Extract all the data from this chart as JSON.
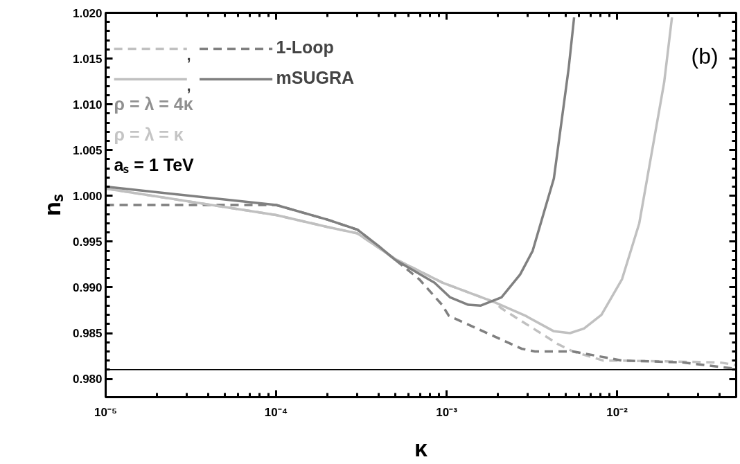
{
  "chart_data": {
    "type": "line",
    "xlabel": "κ",
    "ylabel": "nₛ",
    "log": "x",
    "xlim": [
      1e-05,
      0.05
    ],
    "ylim": [
      0.978,
      1.02
    ],
    "xticks": [
      {
        "value": 1e-05,
        "label": "10⁻⁵"
      },
      {
        "value": 0.0001,
        "label": "10⁻⁴"
      },
      {
        "value": 0.001,
        "label": "10⁻³"
      },
      {
        "value": 0.01,
        "label": "10⁻²"
      }
    ],
    "yticks": [
      {
        "value": 0.98,
        "label": "0.980"
      },
      {
        "value": 0.985,
        "label": "0.985"
      },
      {
        "value": 0.99,
        "label": "0.990"
      },
      {
        "value": 0.995,
        "label": "0.995"
      },
      {
        "value": 1.0,
        "label": "1.000"
      },
      {
        "value": 1.005,
        "label": "1.005"
      },
      {
        "value": 1.01,
        "label": "1.010"
      },
      {
        "value": 1.015,
        "label": "1.015"
      },
      {
        "value": 1.02,
        "label": "1.020"
      }
    ],
    "grid": false,
    "legend": "top left",
    "marker": "none",
    "series": [
      {
        "color": "#c0c0c0",
        "line_style": "dashed",
        "x": [
          1e-05,
          0.0001,
          0.0002,
          0.0003,
          0.0005,
          0.00095,
          0.0019,
          0.0021,
          0.0045,
          0.0055,
          0.0083,
          0.01,
          0.04,
          0.05
        ],
        "values": [
          1.0008,
          0.9979,
          0.9966,
          0.9959,
          0.9931,
          0.9905,
          0.9884,
          0.9877,
          0.9838,
          0.983,
          0.982,
          0.982,
          0.9818,
          0.9815
        ]
      },
      {
        "name": "1-Loop",
        "color": "#808080",
        "line_style": "dashed",
        "x": [
          1e-05,
          0.0001,
          0.0002,
          0.0003,
          0.0005,
          0.00069,
          0.00094,
          0.00103,
          0.00275,
          0.0033,
          0.0055,
          0.0107,
          0.024,
          0.05
        ],
        "values": [
          0.999,
          0.999,
          0.9974,
          0.9963,
          0.993,
          0.9909,
          0.9881,
          0.9869,
          0.9833,
          0.983,
          0.983,
          0.982,
          0.9818,
          0.9811
        ]
      },
      {
        "color": "#c0c0c0",
        "line_style": "solid",
        "x": [
          1e-05,
          0.0001,
          0.0002,
          0.0003,
          0.0005,
          0.00095,
          0.0019,
          0.0029,
          0.00426,
          0.0053,
          0.0064,
          0.0081,
          0.0107,
          0.0135,
          0.0189,
          0.021
        ],
        "values": [
          1.0008,
          0.9979,
          0.9966,
          0.9959,
          0.9931,
          0.9905,
          0.9884,
          0.9869,
          0.9852,
          0.985,
          0.9855,
          0.987,
          0.9909,
          0.997,
          1.0124,
          1.0195
        ]
      },
      {
        "name": "mSUGRA",
        "color": "#808080",
        "line_style": "solid",
        "x": [
          1e-05,
          0.0001,
          0.0002,
          0.0003,
          0.0004,
          0.0005,
          0.00085,
          0.00105,
          0.00134,
          0.00158,
          0.0021,
          0.0027,
          0.0032,
          0.00426,
          0.0052,
          0.0056
        ],
        "values": [
          1.001,
          0.999,
          0.9974,
          0.9963,
          0.9945,
          0.993,
          0.9905,
          0.9889,
          0.9881,
          0.988,
          0.9889,
          0.9914,
          0.994,
          1.0019,
          1.0139,
          1.0195
        ]
      }
    ],
    "ref_lines": [
      {
        "axis": "y",
        "value": 0.981,
        "color": "#000000",
        "line_style": "solid"
      }
    ],
    "annotations": [
      ",",
      ",",
      "ρ = λ = 4κ",
      "ρ = λ = κ",
      "aₛ = 1 TeV",
      "(b)"
    ]
  }
}
